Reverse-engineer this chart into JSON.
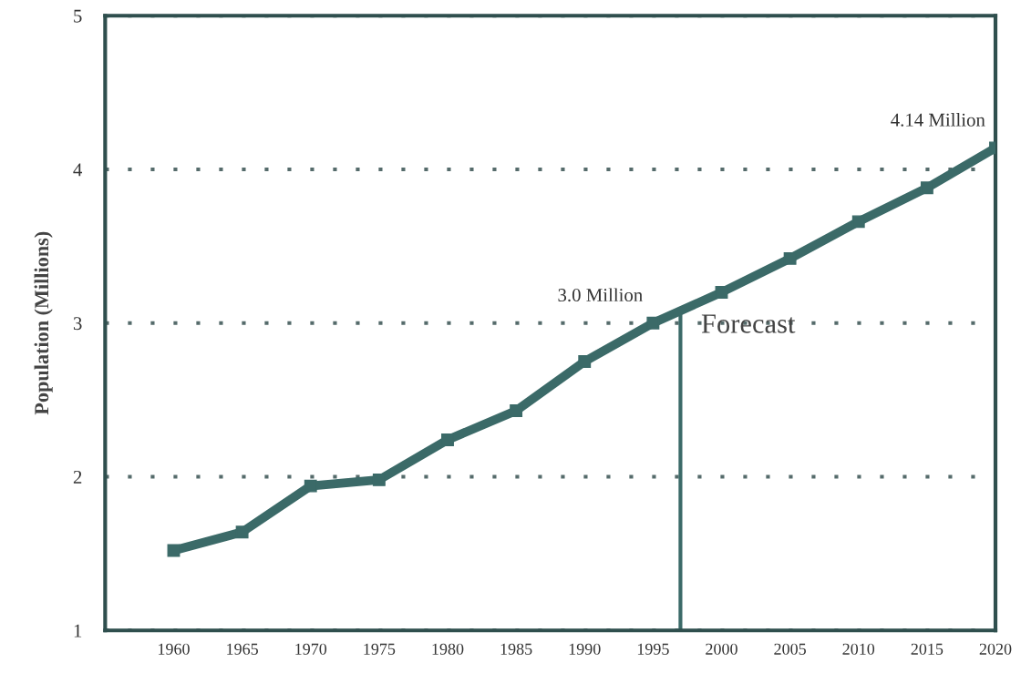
{
  "chart_data": {
    "type": "line",
    "ylabel": "Population (Millions)",
    "x": [
      1960,
      1965,
      1970,
      1975,
      1980,
      1985,
      1990,
      1995,
      2000,
      2005,
      2010,
      2015,
      2020
    ],
    "series": [
      {
        "color": "#3b6a68",
        "values": [
          1.52,
          1.64,
          1.94,
          1.98,
          2.24,
          2.43,
          2.75,
          3.0,
          3.2,
          3.42,
          3.66,
          3.88,
          4.14
        ]
      }
    ],
    "xlim": [
      1955,
      2020
    ],
    "xticks": [
      1960,
      1965,
      1970,
      1975,
      1980,
      1985,
      1990,
      1995,
      2000,
      2005,
      2010,
      2015,
      2020
    ],
    "ylim": [
      1,
      5
    ],
    "yticks": [
      1,
      2,
      3,
      4,
      5
    ],
    "grid": "y",
    "marker": "square",
    "line_style": "solid",
    "ref_lines": [
      {
        "axis": "x",
        "value": 1997,
        "label": "Forecast",
        "color": "#3b6a68"
      }
    ],
    "annotations": [
      {
        "text": "3.0 Million",
        "x": 1995,
        "y": 3.0
      },
      {
        "text": "4.14 Million",
        "x": 2020,
        "y": 4.14
      }
    ]
  }
}
